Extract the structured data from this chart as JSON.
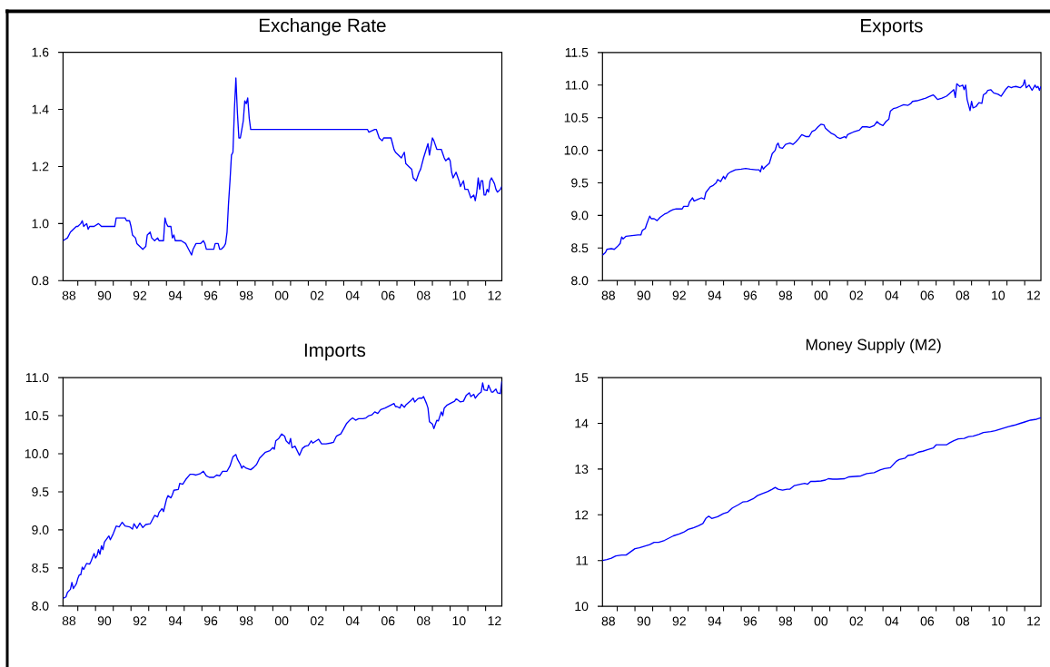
{
  "chart_data": [
    {
      "type": "line",
      "title": "Exchange Rate",
      "color": "#0000ff",
      "xlim": [
        "1988-03",
        "2012-12"
      ],
      "ylim": [
        0.8,
        1.6
      ],
      "xticks": [
        {
          "value": "1988-07",
          "label": "88"
        },
        {
          "value": "1989",
          "label": null
        },
        {
          "value": "1990",
          "label": null
        },
        {
          "value": "1990-07",
          "label": "90"
        },
        {
          "value": "1991",
          "label": null
        },
        {
          "value": "1992",
          "label": null
        },
        {
          "value": "1992-07",
          "label": "92"
        },
        {
          "value": "1993",
          "label": null
        },
        {
          "value": "1994",
          "label": null
        },
        {
          "value": "1994-07",
          "label": "94"
        },
        {
          "value": "1995",
          "label": null
        },
        {
          "value": "1996",
          "label": null
        },
        {
          "value": "1996-07",
          "label": "96"
        },
        {
          "value": "1997",
          "label": null
        },
        {
          "value": "1998",
          "label": null
        },
        {
          "value": "1998-07",
          "label": "98"
        },
        {
          "value": "1999",
          "label": null
        },
        {
          "value": "2000",
          "label": null
        },
        {
          "value": "2000-07",
          "label": "00"
        },
        {
          "value": "2001",
          "label": null
        },
        {
          "value": "2002",
          "label": null
        },
        {
          "value": "2002-07",
          "label": "02"
        },
        {
          "value": "2003",
          "label": null
        },
        {
          "value": "2004",
          "label": null
        },
        {
          "value": "2004-07",
          "label": "04"
        },
        {
          "value": "2005",
          "label": null
        },
        {
          "value": "2006",
          "label": null
        },
        {
          "value": "2006-07",
          "label": "06"
        },
        {
          "value": "2007",
          "label": null
        },
        {
          "value": "2008",
          "label": null
        },
        {
          "value": "2008-07",
          "label": "08"
        },
        {
          "value": "2009",
          "label": null
        },
        {
          "value": "2010",
          "label": null
        },
        {
          "value": "2010-07",
          "label": "10"
        },
        {
          "value": "2011",
          "label": null
        },
        {
          "value": "2012",
          "label": null
        },
        {
          "value": "2012-07",
          "label": "12"
        }
      ],
      "yticks": [
        0.8,
        {
          "value": 1,
          "label": "1.0"
        },
        1.2,
        1.4,
        1.6
      ],
      "x": [
        "1988-03",
        "1988-06",
        "1988-08",
        "1988-10",
        "1988-12",
        "1989-01",
        "1989-03",
        "1989-04",
        "1989-05",
        "1989-07",
        "1989-08",
        "1989-09",
        "1989-12",
        "1990-03",
        "1990-05",
        "1990-10",
        "1991-02",
        "1991-03",
        "1991-05",
        "1991-07",
        "1991-09",
        "1991-10",
        "1991-12",
        "1992-01",
        "1992-02",
        "1992-04",
        "1992-05",
        "1992-07",
        "1992-09",
        "1992-11",
        "1992-12",
        "1993-02",
        "1993-03",
        "1993-05",
        "1993-07",
        "1993-08",
        "1993-11",
        "1993-12",
        "1994-01",
        "1994-02",
        "1994-04",
        "1994-05",
        "1994-06",
        "1994-07",
        "1994-11",
        "1995-02",
        "1995-04",
        "1995-06",
        "1995-07",
        "1995-09",
        "1995-12",
        "1996-02",
        "1996-03",
        "1996-04",
        "1996-09",
        "1996-10",
        "1996-12",
        "1997-01",
        "1997-02",
        "1997-04",
        "1997-05",
        "1997-06",
        "1997-07",
        "1997-08",
        "1997-09",
        "1997-10",
        "1997-11",
        "1997-12",
        "1998-01",
        "1998-02",
        "1998-03",
        "1998-04",
        "1998-05",
        "1998-06",
        "1998-07",
        "1998-08",
        "1998-09",
        "1998-10",
        "2005-05",
        "2005-06",
        "2005-10",
        "2005-11",
        "2006-01",
        "2006-03",
        "2006-04",
        "2006-07",
        "2006-09",
        "2006-10",
        "2006-11",
        "2006-12",
        "2007-02",
        "2007-04",
        "2007-06",
        "2007-07",
        "2007-09",
        "2007-11",
        "2007-12",
        "2008-02",
        "2008-04",
        "2008-05",
        "2008-07",
        "2008-10",
        "2008-11",
        "2009-01",
        "2009-02",
        "2009-04",
        "2009-07",
        "2009-09",
        "2009-10",
        "2009-12",
        "2010-01",
        "2010-02",
        "2010-03",
        "2010-05",
        "2010-07",
        "2010-08",
        "2010-10",
        "2010-11",
        "2011-01",
        "2011-03",
        "2011-05",
        "2011-06",
        "2011-07",
        "2011-08",
        "2011-09",
        "2011-10",
        "2011-11",
        "2011-12",
        "2012-01",
        "2012-02",
        "2012-03",
        "2012-04",
        "2012-05",
        "2012-07",
        "2012-08",
        "2012-09",
        "2012-11",
        "2012-12"
      ],
      "values": [
        0.94,
        0.95,
        0.97,
        0.98,
        0.99,
        0.99,
        1.0,
        1.01,
        0.99,
        1.0,
        0.98,
        0.99,
        0.99,
        1.0,
        0.99,
        0.99,
        0.99,
        1.02,
        1.02,
        1.02,
        1.02,
        1.01,
        1.01,
        0.99,
        0.96,
        0.95,
        0.93,
        0.92,
        0.91,
        0.92,
        0.96,
        0.97,
        0.95,
        0.94,
        0.95,
        0.94,
        0.94,
        1.02,
        1.0,
        0.99,
        0.99,
        0.95,
        0.96,
        0.94,
        0.94,
        0.93,
        0.91,
        0.89,
        0.91,
        0.93,
        0.93,
        0.94,
        0.93,
        0.91,
        0.91,
        0.93,
        0.93,
        0.91,
        0.91,
        0.92,
        0.93,
        0.97,
        1.07,
        1.15,
        1.24,
        1.25,
        1.4,
        1.51,
        1.39,
        1.3,
        1.3,
        1.33,
        1.36,
        1.43,
        1.42,
        1.44,
        1.37,
        1.33,
        1.33,
        1.32,
        1.33,
        1.33,
        1.3,
        1.29,
        1.3,
        1.3,
        1.3,
        1.28,
        1.26,
        1.25,
        1.24,
        1.23,
        1.25,
        1.21,
        1.2,
        1.19,
        1.16,
        1.15,
        1.18,
        1.19,
        1.23,
        1.28,
        1.24,
        1.3,
        1.29,
        1.26,
        1.26,
        1.23,
        1.22,
        1.23,
        1.22,
        1.18,
        1.16,
        1.18,
        1.15,
        1.13,
        1.15,
        1.12,
        1.12,
        1.09,
        1.1,
        1.08,
        1.11,
        1.16,
        1.12,
        1.15,
        1.15,
        1.1,
        1.1,
        1.12,
        1.11,
        1.15,
        1.16,
        1.14,
        1.12,
        1.11,
        1.12,
        1.13
      ]
    },
    {
      "type": "line",
      "title": "Exports",
      "color": "#0000ff",
      "xlim": [
        "1988-03",
        "2012-12"
      ],
      "ylim": [
        8,
        11.5
      ],
      "xticks": [
        {
          "value": "1988-07",
          "label": "88"
        },
        {
          "value": "1989",
          "label": null
        },
        {
          "value": "1990",
          "label": null
        },
        {
          "value": "1990-07",
          "label": "90"
        },
        {
          "value": "1991",
          "label": null
        },
        {
          "value": "1992",
          "label": null
        },
        {
          "value": "1992-07",
          "label": "92"
        },
        {
          "value": "1993",
          "label": null
        },
        {
          "value": "1994",
          "label": null
        },
        {
          "value": "1994-07",
          "label": "94"
        },
        {
          "value": "1995",
          "label": null
        },
        {
          "value": "1996",
          "label": null
        },
        {
          "value": "1996-07",
          "label": "96"
        },
        {
          "value": "1997",
          "label": null
        },
        {
          "value": "1998",
          "label": null
        },
        {
          "value": "1998-07",
          "label": "98"
        },
        {
          "value": "1999",
          "label": null
        },
        {
          "value": "2000",
          "label": null
        },
        {
          "value": "2000-07",
          "label": "00"
        },
        {
          "value": "2001",
          "label": null
        },
        {
          "value": "2002",
          "label": null
        },
        {
          "value": "2002-07",
          "label": "02"
        },
        {
          "value": "2003",
          "label": null
        },
        {
          "value": "2004",
          "label": null
        },
        {
          "value": "2004-07",
          "label": "04"
        },
        {
          "value": "2005",
          "label": null
        },
        {
          "value": "2006",
          "label": null
        },
        {
          "value": "2006-07",
          "label": "06"
        },
        {
          "value": "2007",
          "label": null
        },
        {
          "value": "2008",
          "label": null
        },
        {
          "value": "2008-07",
          "label": "08"
        },
        {
          "value": "2009",
          "label": null
        },
        {
          "value": "2010",
          "label": null
        },
        {
          "value": "2010-07",
          "label": "10"
        },
        {
          "value": "2011",
          "label": null
        },
        {
          "value": "2012",
          "label": null
        },
        {
          "value": "2012-07",
          "label": "12"
        }
      ],
      "yticks": [
        {
          "value": 8,
          "label": "8.0"
        },
        8.5,
        {
          "value": 9,
          "label": "9.0"
        },
        9.5,
        {
          "value": 10,
          "label": "10.0"
        },
        10.5,
        {
          "value": 11,
          "label": "11.0"
        },
        11.5
      ],
      "x": [
        "1988-03",
        "1988-05",
        "1988-06",
        "1988-09",
        "1988-11",
        "1989-01",
        "1989-03",
        "1989-04",
        "1989-05",
        "1989-07",
        "1989-11",
        "1990-03",
        "1990-05",
        "1990-06",
        "1990-08",
        "1990-09",
        "1990-11",
        "1990-12",
        "1991-02",
        "1991-04",
        "1991-06",
        "1991-09",
        "1991-11",
        "1992-01",
        "1992-03",
        "1992-05",
        "1992-09",
        "1992-10",
        "1993-01",
        "1993-02",
        "1993-04",
        "1993-05",
        "1993-08",
        "1993-10",
        "1993-12",
        "1994-01",
        "1994-04",
        "1994-06",
        "1994-08",
        "1994-09",
        "1994-11",
        "1995-01",
        "1995-02",
        "1995-04",
        "1995-06",
        "1995-09",
        "1996-01",
        "1996-04",
        "1996-07",
        "1996-11",
        "1997-01",
        "1997-02",
        "1997-03",
        "1997-04",
        "1997-05",
        "1997-08",
        "1997-10",
        "1997-12",
        "1998-01",
        "1998-02",
        "1998-03",
        "1998-05",
        "1998-07",
        "1998-10",
        "1998-12",
        "1999-02",
        "1999-04",
        "1999-06",
        "1999-09",
        "1999-11",
        "2000-01",
        "2000-03",
        "2000-05",
        "2000-07",
        "2000-09",
        "2000-10",
        "2001-01",
        "2001-02",
        "2001-04",
        "2001-06",
        "2001-08",
        "2001-11",
        "2001-12",
        "2002-01",
        "2002-03",
        "2002-05",
        "2002-09",
        "2002-11",
        "2003-02",
        "2003-04",
        "2003-07",
        "2003-09",
        "2003-11",
        "2004-01",
        "2004-03",
        "2004-05",
        "2004-06",
        "2004-08",
        "2004-10",
        "2004-12",
        "2005-03",
        "2005-06",
        "2005-08",
        "2005-09",
        "2005-12",
        "2006-03",
        "2006-06",
        "2006-08",
        "2006-11",
        "2006-12",
        "2007-02",
        "2007-05",
        "2007-08",
        "2007-10",
        "2007-12",
        "2008-01",
        "2008-02",
        "2008-03",
        "2008-05",
        "2008-07",
        "2008-08",
        "2008-09",
        "2008-10",
        "2008-12",
        "2009-01",
        "2009-02",
        "2009-04",
        "2009-06",
        "2009-08",
        "2009-09",
        "2009-11",
        "2009-12",
        "2010-02",
        "2010-04",
        "2010-07",
        "2010-09",
        "2010-12",
        "2011-02",
        "2011-04",
        "2011-05",
        "2011-07",
        "2011-10",
        "2011-12",
        "2012-01",
        "2012-02",
        "2012-04",
        "2012-06",
        "2012-08",
        "2012-09",
        "2012-10",
        "2012-11",
        "2012-12"
      ],
      "values": [
        8.39,
        8.43,
        8.48,
        8.49,
        8.48,
        8.52,
        8.57,
        8.67,
        8.64,
        8.68,
        8.69,
        8.7,
        8.7,
        8.77,
        8.8,
        8.87,
        8.99,
        8.95,
        8.95,
        8.92,
        8.97,
        9.02,
        9.04,
        9.07,
        9.09,
        9.1,
        9.1,
        9.14,
        9.14,
        9.21,
        9.27,
        9.22,
        9.25,
        9.27,
        9.25,
        9.35,
        9.44,
        9.46,
        9.5,
        9.55,
        9.52,
        9.6,
        9.56,
        9.64,
        9.67,
        9.7,
        9.71,
        9.72,
        9.71,
        9.7,
        9.7,
        9.67,
        9.76,
        9.71,
        9.74,
        9.8,
        9.95,
        10.0,
        10.08,
        10.11,
        10.04,
        10.03,
        10.09,
        10.11,
        10.09,
        10.13,
        10.18,
        10.24,
        10.21,
        10.21,
        10.29,
        10.31,
        10.36,
        10.4,
        10.39,
        10.34,
        10.28,
        10.26,
        10.24,
        10.2,
        10.18,
        10.21,
        10.19,
        10.24,
        10.26,
        10.28,
        10.31,
        10.36,
        10.36,
        10.35,
        10.38,
        10.44,
        10.4,
        10.38,
        10.44,
        10.48,
        10.6,
        10.64,
        10.65,
        10.67,
        10.7,
        10.69,
        10.72,
        10.75,
        10.76,
        10.78,
        10.8,
        10.82,
        10.85,
        10.83,
        10.78,
        10.8,
        10.83,
        10.87,
        10.91,
        10.93,
        10.81,
        11.02,
        10.98,
        11.0,
        10.93,
        11.0,
        10.78,
        10.61,
        10.75,
        10.65,
        10.67,
        10.73,
        10.72,
        10.85,
        10.88,
        10.92,
        10.93,
        10.88,
        10.86,
        10.83,
        10.93,
        10.98,
        10.96,
        10.97,
        10.98,
        10.96,
        11.0,
        11.08,
        10.96,
        11.0,
        10.92,
        11.0,
        10.96,
        10.98,
        10.92,
        10.98
      ]
    },
    {
      "type": "line",
      "title": "Imports",
      "color": "#0000ff",
      "xlim": [
        "1988-03",
        "2012-12"
      ],
      "ylim": [
        8,
        11
      ],
      "xticks": [
        {
          "value": "1988-07",
          "label": "88"
        },
        {
          "value": "1989",
          "label": null
        },
        {
          "value": "1990",
          "label": null
        },
        {
          "value": "1990-07",
          "label": "90"
        },
        {
          "value": "1991",
          "label": null
        },
        {
          "value": "1992",
          "label": null
        },
        {
          "value": "1992-07",
          "label": "92"
        },
        {
          "value": "1993",
          "label": null
        },
        {
          "value": "1994",
          "label": null
        },
        {
          "value": "1994-07",
          "label": "94"
        },
        {
          "value": "1995",
          "label": null
        },
        {
          "value": "1996",
          "label": null
        },
        {
          "value": "1996-07",
          "label": "96"
        },
        {
          "value": "1997",
          "label": null
        },
        {
          "value": "1998",
          "label": null
        },
        {
          "value": "1998-07",
          "label": "98"
        },
        {
          "value": "1999",
          "label": null
        },
        {
          "value": "2000",
          "label": null
        },
        {
          "value": "2000-07",
          "label": "00"
        },
        {
          "value": "2001",
          "label": null
        },
        {
          "value": "2002",
          "label": null
        },
        {
          "value": "2002-07",
          "label": "02"
        },
        {
          "value": "2003",
          "label": null
        },
        {
          "value": "2004",
          "label": null
        },
        {
          "value": "2004-07",
          "label": "04"
        },
        {
          "value": "2005",
          "label": null
        },
        {
          "value": "2006",
          "label": null
        },
        {
          "value": "2006-07",
          "label": "06"
        },
        {
          "value": "2007",
          "label": null
        },
        {
          "value": "2008",
          "label": null
        },
        {
          "value": "2008-07",
          "label": "08"
        },
        {
          "value": "2009",
          "label": null
        },
        {
          "value": "2010",
          "label": null
        },
        {
          "value": "2010-07",
          "label": "10"
        },
        {
          "value": "2011",
          "label": null
        },
        {
          "value": "2012",
          "label": null
        },
        {
          "value": "2012-07",
          "label": "12"
        }
      ],
      "yticks": [
        {
          "value": 8,
          "label": "8.0"
        },
        8.5,
        {
          "value": 9,
          "label": "9.0"
        },
        9.5,
        {
          "value": 10,
          "label": "10.0"
        },
        10.5,
        {
          "value": 11,
          "label": "11.0"
        }
      ],
      "x": [
        "1988-03",
        "1988-05",
        "1988-06",
        "1988-08",
        "1988-09",
        "1988-10",
        "1988-12",
        "1989-01",
        "1989-02",
        "1989-03",
        "1989-04",
        "1989-05",
        "1989-07",
        "1989-09",
        "1989-10",
        "1989-12",
        "1990-01",
        "1990-02",
        "1990-03",
        "1990-04",
        "1990-05",
        "1990-06",
        "1990-07",
        "1990-10",
        "1990-11",
        "1991-01",
        "1991-03",
        "1991-05",
        "1991-07",
        "1991-09",
        "1991-12",
        "1992-02",
        "1992-03",
        "1992-05",
        "1992-07",
        "1992-09",
        "1992-11",
        "1993-02",
        "1993-05",
        "1993-07",
        "1993-08",
        "1993-10",
        "1993-11",
        "1994-01",
        "1994-02",
        "1994-04",
        "1994-05",
        "1994-06",
        "1994-09",
        "1994-10",
        "1994-12",
        "1995-02",
        "1995-05",
        "1995-07",
        "1995-09",
        "1995-12",
        "1996-02",
        "1996-04",
        "1996-06",
        "1996-09",
        "1996-11",
        "1997-01",
        "1997-03",
        "1997-06",
        "1997-08",
        "1997-10",
        "1997-12",
        "1998-01",
        "1998-03",
        "1998-04",
        "1998-05",
        "1998-07",
        "1998-10",
        "1998-12",
        "1999-02",
        "1999-04",
        "1999-06",
        "1999-08",
        "1999-11",
        "2000-01",
        "2000-02",
        "2000-03",
        "2000-05",
        "2000-07",
        "2000-09",
        "2000-10",
        "2000-12",
        "2001-01",
        "2001-02",
        "2001-04",
        "2001-07",
        "2001-09",
        "2001-11",
        "2002-01",
        "2002-03",
        "2002-04",
        "2002-08",
        "2002-10",
        "2003-01",
        "2003-04",
        "2003-06",
        "2003-08",
        "2003-11",
        "2004-01",
        "2004-03",
        "2004-05",
        "2004-07",
        "2004-09",
        "2004-11",
        "2005-02",
        "2005-04",
        "2005-06",
        "2005-08",
        "2005-10",
        "2005-12",
        "2006-02",
        "2006-05",
        "2006-07",
        "2006-09",
        "2006-11",
        "2006-12",
        "2007-01",
        "2007-03",
        "2007-04",
        "2007-06",
        "2007-07",
        "2007-10",
        "2007-12",
        "2008-01",
        "2008-03",
        "2008-04",
        "2008-06",
        "2008-07",
        "2008-09",
        "2008-10",
        "2008-11",
        "2009-01",
        "2009-02",
        "2009-04",
        "2009-05",
        "2009-07",
        "2009-08",
        "2009-09",
        "2009-11",
        "2010-01",
        "2010-04",
        "2010-05",
        "2010-06",
        "2010-08",
        "2010-10",
        "2010-12",
        "2011-02",
        "2011-03",
        "2011-05",
        "2011-06",
        "2011-08",
        "2011-10",
        "2011-11",
        "2011-12",
        "2012-02",
        "2012-03",
        "2012-05",
        "2012-06",
        "2012-08",
        "2012-09",
        "2012-11",
        "2012-12"
      ],
      "values": [
        8.1,
        8.12,
        8.18,
        8.22,
        8.31,
        8.23,
        8.29,
        8.36,
        8.41,
        8.41,
        8.51,
        8.48,
        8.56,
        8.55,
        8.59,
        8.69,
        8.63,
        8.66,
        8.74,
        8.68,
        8.79,
        8.74,
        8.84,
        8.92,
        8.87,
        8.95,
        9.05,
        9.04,
        9.1,
        9.05,
        9.04,
        9.01,
        9.08,
        9.02,
        9.09,
        9.03,
        9.07,
        9.08,
        9.19,
        9.17,
        9.23,
        9.28,
        9.24,
        9.4,
        9.45,
        9.42,
        9.46,
        9.52,
        9.53,
        9.61,
        9.6,
        9.66,
        9.73,
        9.73,
        9.72,
        9.74,
        9.77,
        9.71,
        9.69,
        9.69,
        9.72,
        9.71,
        9.77,
        9.77,
        9.84,
        9.96,
        9.99,
        9.93,
        9.86,
        9.81,
        9.84,
        9.81,
        9.79,
        9.82,
        9.86,
        9.94,
        9.98,
        10.02,
        10.04,
        10.08,
        10.06,
        10.17,
        10.2,
        10.26,
        10.23,
        10.17,
        10.13,
        10.2,
        10.08,
        10.1,
        9.98,
        10.07,
        10.1,
        10.11,
        10.17,
        10.14,
        10.19,
        10.13,
        10.13,
        10.14,
        10.15,
        10.23,
        10.26,
        10.33,
        10.4,
        10.44,
        10.47,
        10.44,
        10.46,
        10.46,
        10.47,
        10.5,
        10.51,
        10.55,
        10.53,
        10.58,
        10.6,
        10.62,
        10.64,
        10.66,
        10.62,
        10.62,
        10.6,
        10.65,
        10.61,
        10.64,
        10.69,
        10.73,
        10.68,
        10.72,
        10.73,
        10.73,
        10.75,
        10.66,
        10.6,
        10.42,
        10.39,
        10.33,
        10.44,
        10.43,
        10.55,
        10.5,
        10.6,
        10.64,
        10.66,
        10.69,
        10.72,
        10.71,
        10.68,
        10.69,
        10.77,
        10.8,
        10.75,
        10.78,
        10.73,
        10.78,
        10.81,
        10.93,
        10.84,
        10.83,
        10.9,
        10.81,
        10.81,
        10.85,
        10.8,
        10.79,
        10.95
      ]
    },
    {
      "type": "line",
      "title": "Money Supply (M2)",
      "color": "#0000ff",
      "xlim": [
        "1988-03",
        "2012-12"
      ],
      "ylim": [
        10,
        15
      ],
      "xticks": [
        {
          "value": "1988-07",
          "label": "88"
        },
        {
          "value": "1989",
          "label": null
        },
        {
          "value": "1990",
          "label": null
        },
        {
          "value": "1990-07",
          "label": "90"
        },
        {
          "value": "1991",
          "label": null
        },
        {
          "value": "1992",
          "label": null
        },
        {
          "value": "1992-07",
          "label": "92"
        },
        {
          "value": "1993",
          "label": null
        },
        {
          "value": "1994",
          "label": null
        },
        {
          "value": "1994-07",
          "label": "94"
        },
        {
          "value": "1995",
          "label": null
        },
        {
          "value": "1996",
          "label": null
        },
        {
          "value": "1996-07",
          "label": "96"
        },
        {
          "value": "1997",
          "label": null
        },
        {
          "value": "1998",
          "label": null
        },
        {
          "value": "1998-07",
          "label": "98"
        },
        {
          "value": "1999",
          "label": null
        },
        {
          "value": "2000",
          "label": null
        },
        {
          "value": "2000-07",
          "label": "00"
        },
        {
          "value": "2001",
          "label": null
        },
        {
          "value": "2002",
          "label": null
        },
        {
          "value": "2002-07",
          "label": "02"
        },
        {
          "value": "2003",
          "label": null
        },
        {
          "value": "2004",
          "label": null
        },
        {
          "value": "2004-07",
          "label": "04"
        },
        {
          "value": "2005",
          "label": null
        },
        {
          "value": "2006",
          "label": null
        },
        {
          "value": "2006-07",
          "label": "06"
        },
        {
          "value": "2007",
          "label": null
        },
        {
          "value": "2008",
          "label": null
        },
        {
          "value": "2008-07",
          "label": "08"
        },
        {
          "value": "2009",
          "label": null
        },
        {
          "value": "2010",
          "label": null
        },
        {
          "value": "2010-07",
          "label": "10"
        },
        {
          "value": "2011",
          "label": null
        },
        {
          "value": "2012",
          "label": null
        },
        {
          "value": "2012-07",
          "label": "12"
        }
      ],
      "yticks": [
        10,
        11,
        12,
        13,
        14,
        15
      ],
      "x": [
        "1988-03",
        "1988-06",
        "1988-09",
        "1988-12",
        "1989-04",
        "1989-07",
        "1989-10",
        "1990-01",
        "1990-04",
        "1990-07",
        "1990-11",
        "1991-02",
        "1991-05",
        "1991-09",
        "1991-12",
        "1992-03",
        "1992-07",
        "1992-10",
        "1993-01",
        "1993-05",
        "1993-08",
        "1993-11",
        "1994-01",
        "1994-03",
        "1994-05",
        "1994-09",
        "1995-01",
        "1995-04",
        "1995-07",
        "1995-11",
        "1996-02",
        "1996-05",
        "1996-09",
        "1996-12",
        "1997-03",
        "1997-07",
        "1997-10",
        "1997-12",
        "1998-02",
        "1998-05",
        "1998-08",
        "1998-10",
        "1999-01",
        "1999-05",
        "1999-08",
        "1999-10",
        "1999-12",
        "2000-03",
        "2000-07",
        "2000-10",
        "2000-12",
        "2001-03",
        "2001-06",
        "2001-11",
        "2002-02",
        "2002-06",
        "2002-10",
        "2003-02",
        "2003-07",
        "2003-11",
        "2004-02",
        "2004-06",
        "2004-08",
        "2004-10",
        "2004-12",
        "2005-04",
        "2005-06",
        "2005-09",
        "2006-01",
        "2006-04",
        "2006-07",
        "2006-11",
        "2007-01",
        "2007-04",
        "2007-08",
        "2007-10",
        "2008-01",
        "2008-04",
        "2008-08",
        "2008-11",
        "2009-02",
        "2009-06",
        "2009-09",
        "2010-02",
        "2010-05",
        "2010-09",
        "2011-02",
        "2011-06",
        "2011-10",
        "2012-01",
        "2012-05",
        "2012-09",
        "2012-12"
      ],
      "values": [
        11.0,
        11.02,
        11.05,
        11.1,
        11.12,
        11.12,
        11.19,
        11.26,
        11.28,
        11.31,
        11.35,
        11.4,
        11.4,
        11.44,
        11.49,
        11.54,
        11.58,
        11.62,
        11.68,
        11.72,
        11.76,
        11.81,
        11.92,
        11.97,
        11.92,
        11.96,
        12.03,
        12.06,
        12.15,
        12.22,
        12.28,
        12.29,
        12.35,
        12.42,
        12.46,
        12.51,
        12.56,
        12.6,
        12.56,
        12.54,
        12.56,
        12.56,
        12.64,
        12.67,
        12.69,
        12.67,
        12.73,
        12.73,
        12.74,
        12.76,
        12.79,
        12.78,
        12.78,
        12.79,
        12.83,
        12.84,
        12.85,
        12.9,
        12.92,
        12.98,
        13.01,
        13.03,
        13.1,
        13.17,
        13.21,
        13.24,
        13.3,
        13.31,
        13.37,
        13.39,
        13.42,
        13.46,
        13.53,
        13.53,
        13.53,
        13.57,
        13.62,
        13.66,
        13.67,
        13.71,
        13.72,
        13.76,
        13.8,
        13.82,
        13.84,
        13.88,
        13.93,
        13.96,
        14.0,
        14.03,
        14.07,
        14.09,
        14.12
      ]
    }
  ]
}
